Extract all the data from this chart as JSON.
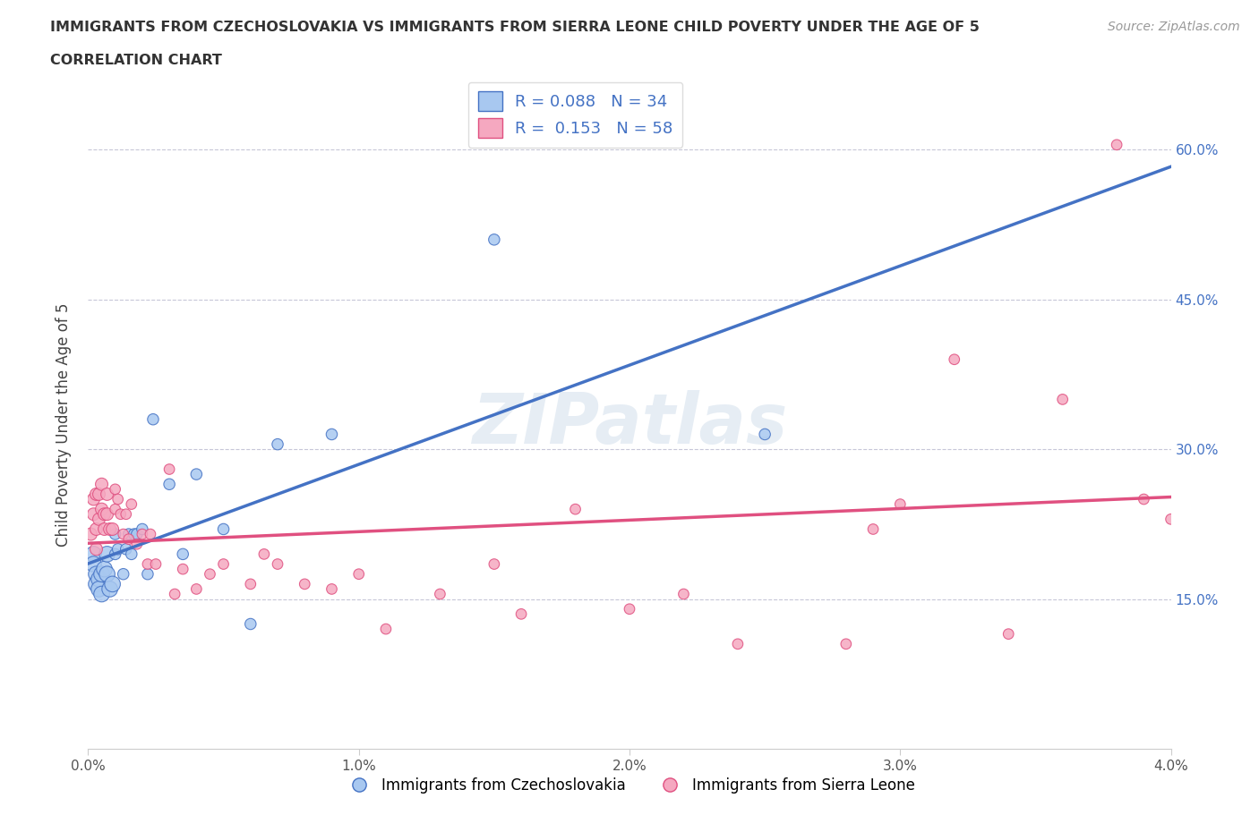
{
  "title_line1": "IMMIGRANTS FROM CZECHOSLOVAKIA VS IMMIGRANTS FROM SIERRA LEONE CHILD POVERTY UNDER THE AGE OF 5",
  "title_line2": "CORRELATION CHART",
  "source_text": "Source: ZipAtlas.com",
  "ylabel": "Child Poverty Under the Age of 5",
  "xlim": [
    0.0,
    0.04
  ],
  "ylim": [
    0.0,
    0.65
  ],
  "yticks": [
    0.15,
    0.3,
    0.45,
    0.6
  ],
  "ytick_labels": [
    "15.0%",
    "30.0%",
    "45.0%",
    "60.0%"
  ],
  "xticks": [
    0.0,
    0.01,
    0.02,
    0.03,
    0.04
  ],
  "xtick_labels": [
    "0.0%",
    "1.0%",
    "2.0%",
    "3.0%",
    "4.0%"
  ],
  "watermark": "ZIPatlas",
  "legend_r1": "R = 0.088   N = 34",
  "legend_r2": "R =  0.153   N = 58",
  "color_czech": "#a8c8f0",
  "color_sierra": "#f5a8c0",
  "line_color_czech": "#4472c4",
  "line_color_sierra": "#e05080",
  "background_color": "#ffffff",
  "grid_color": "#b0b0c8",
  "czech_x": [
    0.0002,
    0.0002,
    0.0003,
    0.0003,
    0.0004,
    0.0004,
    0.0005,
    0.0005,
    0.0006,
    0.0007,
    0.0007,
    0.0008,
    0.0009,
    0.001,
    0.001,
    0.0011,
    0.0013,
    0.0014,
    0.0015,
    0.0016,
    0.0017,
    0.0018,
    0.002,
    0.0022,
    0.0024,
    0.003,
    0.0035,
    0.004,
    0.005,
    0.006,
    0.007,
    0.009,
    0.015,
    0.025
  ],
  "czech_y": [
    0.195,
    0.185,
    0.175,
    0.165,
    0.17,
    0.16,
    0.175,
    0.155,
    0.18,
    0.195,
    0.175,
    0.16,
    0.165,
    0.195,
    0.215,
    0.2,
    0.175,
    0.2,
    0.215,
    0.195,
    0.215,
    0.215,
    0.22,
    0.175,
    0.33,
    0.265,
    0.195,
    0.275,
    0.22,
    0.125,
    0.305,
    0.315,
    0.51,
    0.315
  ],
  "sierra_x": [
    0.0001,
    0.0002,
    0.0002,
    0.0003,
    0.0003,
    0.0003,
    0.0004,
    0.0004,
    0.0005,
    0.0005,
    0.0006,
    0.0006,
    0.0007,
    0.0007,
    0.0008,
    0.0009,
    0.001,
    0.001,
    0.0011,
    0.0012,
    0.0013,
    0.0014,
    0.0015,
    0.0016,
    0.0018,
    0.002,
    0.0022,
    0.0023,
    0.0025,
    0.003,
    0.0032,
    0.0035,
    0.004,
    0.0045,
    0.005,
    0.006,
    0.0065,
    0.007,
    0.008,
    0.009,
    0.01,
    0.011,
    0.013,
    0.015,
    0.016,
    0.018,
    0.02,
    0.022,
    0.024,
    0.028,
    0.03,
    0.032,
    0.034,
    0.036,
    0.038,
    0.039,
    0.04,
    0.029
  ],
  "sierra_y": [
    0.215,
    0.25,
    0.235,
    0.255,
    0.22,
    0.2,
    0.255,
    0.23,
    0.265,
    0.24,
    0.235,
    0.22,
    0.255,
    0.235,
    0.22,
    0.22,
    0.24,
    0.26,
    0.25,
    0.235,
    0.215,
    0.235,
    0.21,
    0.245,
    0.205,
    0.215,
    0.185,
    0.215,
    0.185,
    0.28,
    0.155,
    0.18,
    0.16,
    0.175,
    0.185,
    0.165,
    0.195,
    0.185,
    0.165,
    0.16,
    0.175,
    0.12,
    0.155,
    0.185,
    0.135,
    0.24,
    0.14,
    0.155,
    0.105,
    0.105,
    0.245,
    0.39,
    0.115,
    0.35,
    0.605,
    0.25,
    0.23,
    0.22
  ]
}
